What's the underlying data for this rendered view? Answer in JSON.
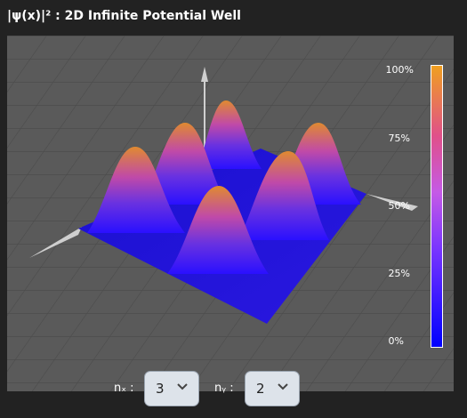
{
  "title": "|ψ(x)|² : 2D Infinite Potential Well",
  "colorbar": {
    "labels": [
      "100%",
      "75%",
      "50%",
      "25%",
      "0%"
    ],
    "gradient": [
      "#0000ff",
      "#7a35ff",
      "#c55ae6",
      "#e0508a",
      "#f0a020"
    ]
  },
  "controls": {
    "nx": {
      "label": "nₓ :",
      "value": "3"
    },
    "ny": {
      "label": "nᵧ :",
      "value": "2"
    }
  },
  "icons": {
    "dropdown": "chevron-down-icon"
  },
  "colors": {
    "background": "#222222",
    "viewport": "#5a5a5a",
    "grid": "#4a4a4a"
  }
}
